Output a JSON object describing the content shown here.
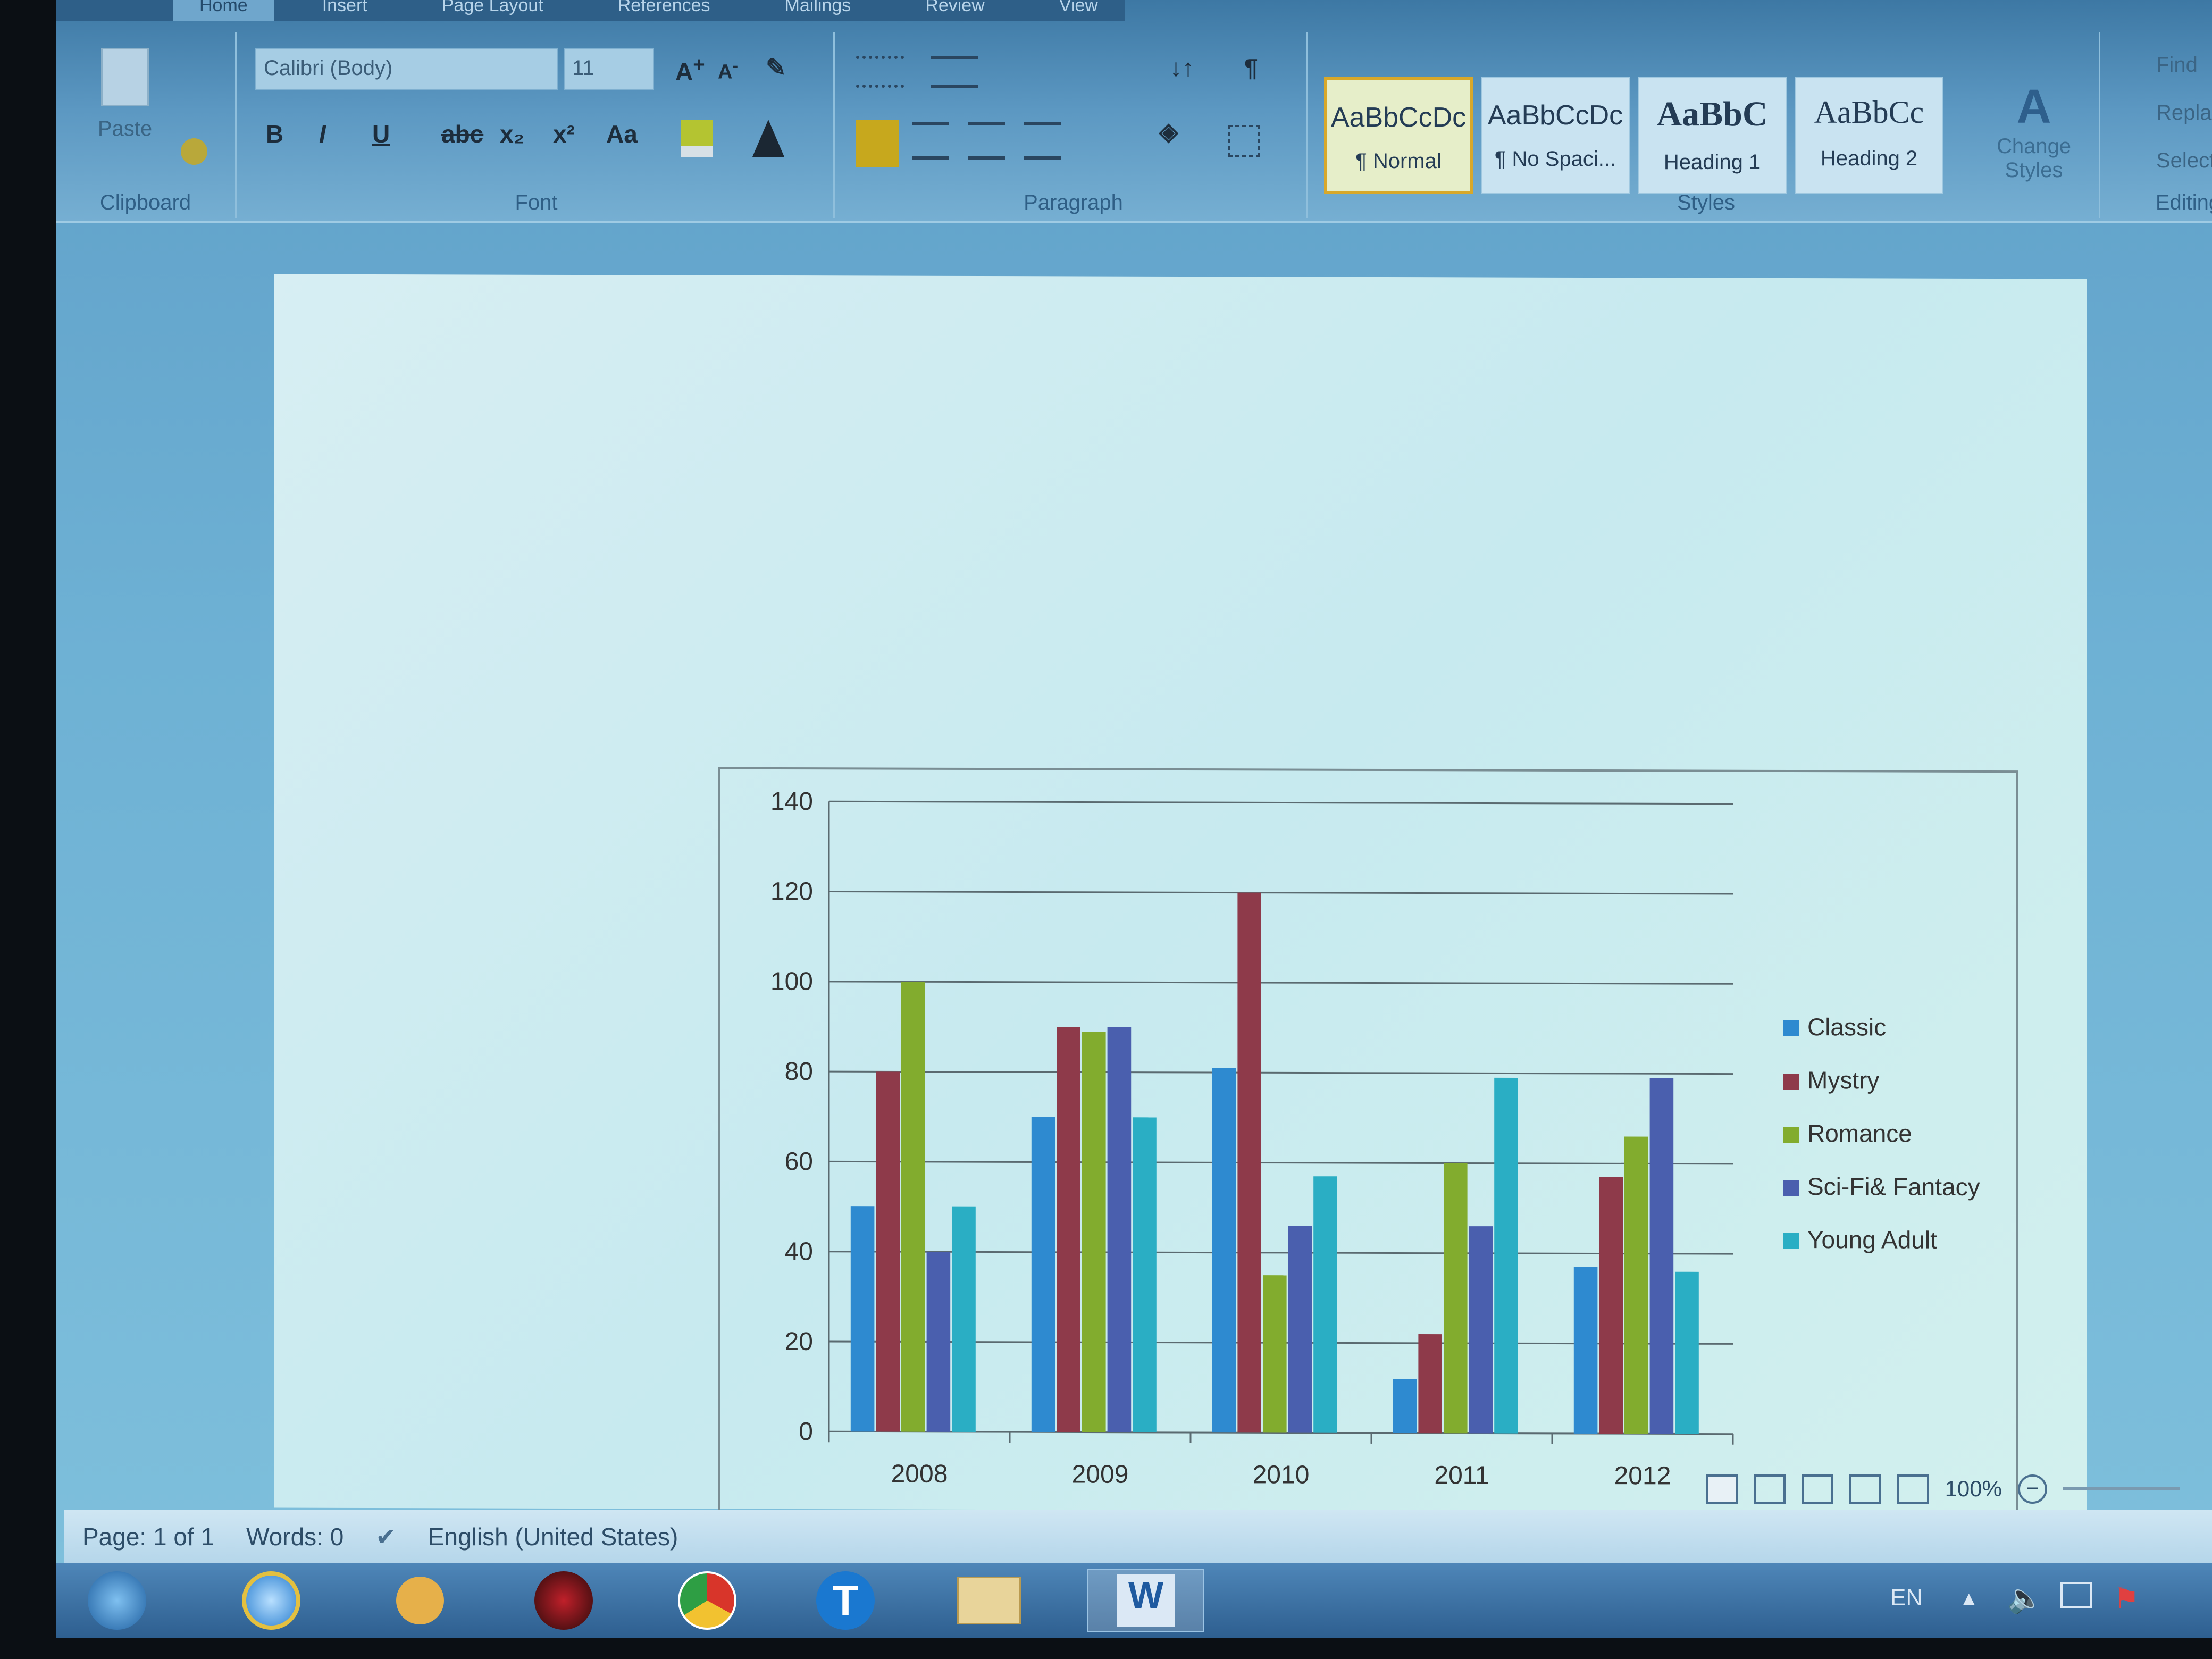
{
  "ribbon": {
    "tabs": [
      "Home",
      "Insert",
      "Page Layout",
      "References",
      "Mailings",
      "Review",
      "View"
    ],
    "clipboard": {
      "label": "Clipboard",
      "paste": "Paste"
    },
    "font": {
      "label": "Font",
      "family": "Calibri (Body)",
      "size": "11",
      "buttons": [
        "B",
        "I",
        "U",
        "abc",
        "x₂",
        "x²",
        "Aa"
      ]
    },
    "paragraph": {
      "label": "Paragraph"
    },
    "styles": {
      "label": "Styles",
      "items": [
        {
          "preview": "AaBbCcDc",
          "name": "¶ Normal"
        },
        {
          "preview": "AaBbCcDc",
          "name": "¶ No Spaci..."
        },
        {
          "preview": "AaBbC",
          "name": "Heading 1"
        },
        {
          "preview": "AaBbCc",
          "name": "Heading 2"
        }
      ],
      "change_styles": "Change Styles"
    },
    "editing": {
      "label": "Editing",
      "items": [
        "Find",
        "Replace",
        "Select"
      ]
    }
  },
  "status": {
    "page": "Page: 1 of 1",
    "words": "Words: 0",
    "language": "English (United States)",
    "zoom": "100%"
  },
  "taskbar": {
    "lang": "EN"
  },
  "chart_data": {
    "type": "bar",
    "categories": [
      "2008",
      "2009",
      "2010",
      "2011",
      "2012"
    ],
    "series": [
      {
        "name": "Classic",
        "color": "#2e8ad0",
        "values": [
          50,
          70,
          81,
          12,
          37
        ]
      },
      {
        "name": "Mystry",
        "color": "#8e3a4a",
        "values": [
          80,
          90,
          120,
          22,
          57
        ]
      },
      {
        "name": "Romance",
        "color": "#82ac2e",
        "values": [
          100,
          89,
          35,
          60,
          66
        ]
      },
      {
        "name": "Sci-Fi& Fantacy",
        "color": "#4a5fae",
        "values": [
          40,
          90,
          46,
          46,
          79
        ]
      },
      {
        "name": "Young Adult",
        "color": "#2aaec4",
        "values": [
          50,
          70,
          57,
          79,
          36
        ]
      }
    ],
    "ylim": [
      0,
      140
    ],
    "yticks": [
      "0",
      "20",
      "40",
      "60",
      "80",
      "100",
      "120",
      "140"
    ],
    "grid": true,
    "legend": "right"
  }
}
